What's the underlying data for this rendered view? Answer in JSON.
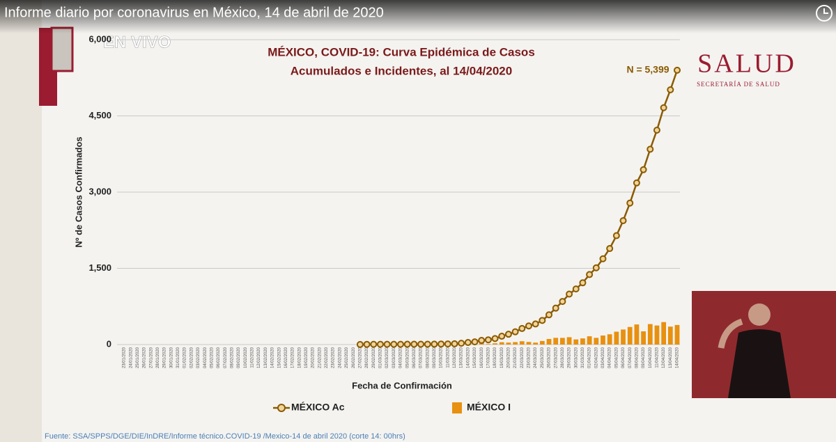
{
  "header": {
    "title": "Informe diario por coronavirus en México, 14 de abril de 2020",
    "live": "EN VIVO"
  },
  "logo": {
    "title": "SALUD",
    "subtitle": "SECRETARÍA DE SALUD"
  },
  "source": "Fuente: SSA/SPPS/DGE/DIE/InDRE/Informe técnico.COVID-19 /Mexico-14 de abril 2020 (corte 14: 00hrs)",
  "chart_data": {
    "type": "line_bar",
    "title": "MÉXICO, COVID-19: Curva Epidémica de Casos",
    "subtitle": "Acumulados e Incidentes, al 14/04/2020",
    "annotation": "N = 5,399",
    "x_label": "Fecha de Confirmación",
    "y_label": "Nº de Casos Confirmados",
    "ylim": [
      0,
      6000
    ],
    "yticks": [
      0,
      {
        "value": 1500,
        "label": "1,500"
      },
      {
        "value": 3000,
        "label": "3,000"
      },
      {
        "value": 4500,
        "label": "4,500"
      },
      {
        "value": 6000,
        "label": "6,000"
      }
    ],
    "grid": true,
    "categories": [
      "23/01/2020",
      "24/01/2020",
      "25/01/2020",
      "26/01/2020",
      "27/01/2020",
      "28/01/2020",
      "29/01/2020",
      "30/01/2020",
      "31/01/2020",
      "01/02/2020",
      "02/02/2020",
      "03/02/2020",
      "04/02/2020",
      "05/02/2020",
      "06/02/2020",
      "07/02/2020",
      "08/02/2020",
      "09/02/2020",
      "10/02/2020",
      "11/02/2020",
      "12/02/2020",
      "13/02/2020",
      "14/02/2020",
      "15/02/2020",
      "16/02/2020",
      "17/02/2020",
      "18/02/2020",
      "19/02/2020",
      "20/02/2020",
      "21/02/2020",
      "22/02/2020",
      "23/02/2020",
      "24/02/2020",
      "25/02/2020",
      "26/02/2020",
      "27/02/2020",
      "28/02/2020",
      "29/02/2020",
      "01/03/2020",
      "02/03/2020",
      "03/03/2020",
      "04/03/2020",
      "05/03/2020",
      "06/03/2020",
      "07/03/2020",
      "08/03/2020",
      "09/03/2020",
      "10/03/2020",
      "11/03/2020",
      "12/03/2020",
      "13/03/2020",
      "14/03/2020",
      "15/03/2020",
      "16/03/2020",
      "17/03/2020",
      "18/03/2020",
      "19/03/2020",
      "20/03/2020",
      "21/03/2020",
      "22/03/2020",
      "23/03/2020",
      "24/03/2020",
      "25/03/2020",
      "26/03/2020",
      "27/03/2020",
      "28/03/2020",
      "29/03/2020",
      "30/03/2020",
      "31/03/2020",
      "01/04/2020",
      "02/04/2020",
      "03/04/2020",
      "04/04/2020",
      "05/04/2020",
      "06/04/2020",
      "07/04/2020",
      "08/04/2020",
      "09/04/2020",
      "10/04/2020",
      "11/04/2020",
      "12/04/2020",
      "13/04/2020",
      "14/04/2020"
    ],
    "series": [
      {
        "name": "MÉXICO Ac",
        "kind": "line",
        "color": "#8a5a00",
        "values": [
          null,
          null,
          null,
          null,
          null,
          null,
          null,
          null,
          null,
          null,
          null,
          null,
          null,
          null,
          null,
          null,
          null,
          null,
          null,
          null,
          null,
          null,
          null,
          null,
          null,
          null,
          null,
          null,
          null,
          null,
          null,
          null,
          null,
          null,
          null,
          1,
          4,
          5,
          5,
          5,
          5,
          5,
          6,
          7,
          7,
          7,
          8,
          11,
          12,
          15,
          26,
          41,
          53,
          82,
          93,
          118,
          164,
          203,
          251,
          316,
          367,
          405,
          475,
          585,
          717,
          848,
          993,
          1094,
          1215,
          1378,
          1510,
          1688,
          1890,
          2143,
          2439,
          2785,
          3181,
          3441,
          3844,
          4219,
          4661,
          5014,
          5399
        ]
      },
      {
        "name": "MÉXICO I",
        "kind": "bar",
        "color": "#e8900f",
        "values": [
          null,
          null,
          null,
          null,
          null,
          null,
          null,
          null,
          null,
          null,
          null,
          null,
          null,
          null,
          null,
          null,
          null,
          null,
          null,
          null,
          null,
          null,
          null,
          null,
          null,
          null,
          null,
          null,
          null,
          null,
          null,
          null,
          null,
          null,
          null,
          1,
          3,
          1,
          0,
          0,
          0,
          0,
          1,
          1,
          0,
          0,
          1,
          3,
          1,
          3,
          11,
          15,
          12,
          29,
          11,
          25,
          46,
          39,
          48,
          65,
          51,
          38,
          70,
          110,
          132,
          131,
          145,
          101,
          121,
          163,
          132,
          178,
          202,
          253,
          296,
          346,
          396,
          260,
          403,
          375,
          442,
          353,
          385
        ]
      }
    ]
  }
}
